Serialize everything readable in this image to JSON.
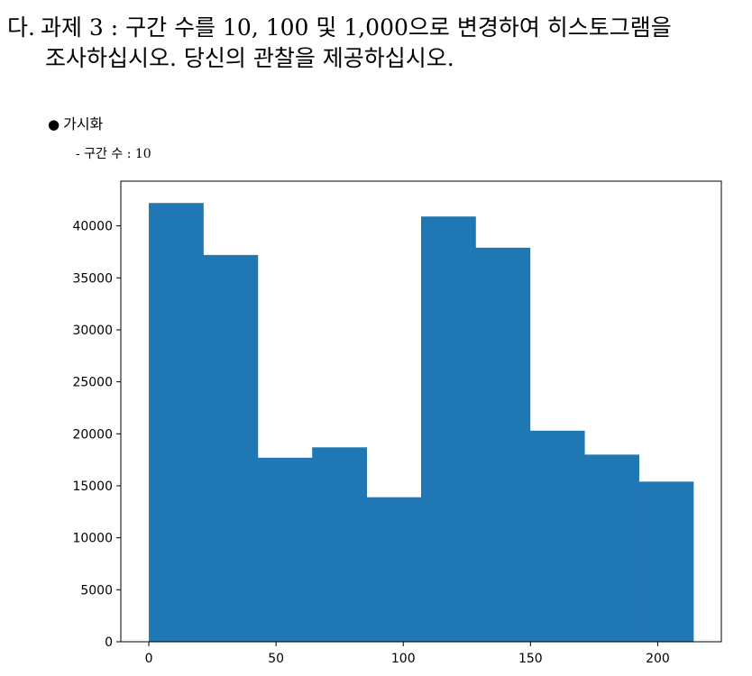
{
  "heading": {
    "prefix": "다.",
    "line1": "과제 3 : 구간 수를 10, 100 및 1,000으로 변경하여 히스토그램을",
    "line2": "조사하십시오. 당신의 관찰을 제공하십시오."
  },
  "bullet": {
    "marker": "●",
    "label": "가시화"
  },
  "subitem": {
    "label": "- 구간 수 : 10"
  },
  "chart_data": {
    "type": "bar",
    "title": "",
    "xlabel": "",
    "ylabel": "",
    "bins": 10,
    "bin_edges": [
      0,
      21.4,
      42.8,
      64.2,
      85.6,
      107.0,
      128.4,
      149.8,
      171.2,
      192.6,
      214.0
    ],
    "values": [
      42200,
      37200,
      17700,
      18700,
      13900,
      40900,
      37900,
      20300,
      18000,
      15400
    ],
    "xlim": [
      -11,
      225
    ],
    "ylim": [
      0,
      44300
    ],
    "xticks": [
      0,
      50,
      100,
      150,
      200
    ],
    "yticks": [
      0,
      5000,
      10000,
      15000,
      20000,
      25000,
      30000,
      35000,
      40000
    ],
    "bar_color": "#1f77b4",
    "grid": false,
    "legend": "none"
  }
}
